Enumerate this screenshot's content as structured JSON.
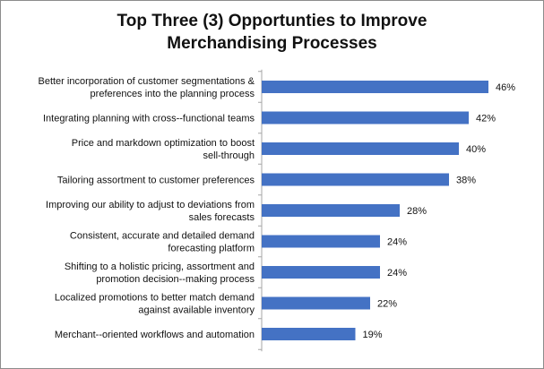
{
  "chart_data": {
    "type": "bar",
    "orientation": "horizontal",
    "title_lines": [
      "Top Three (3) Opportunties  to Improve",
      "Merchandising  Processes"
    ],
    "categories": [
      [
        "Better incorporation of customer segmentations &",
        "preferences into the planning process"
      ],
      [
        "Integrating planning with cross--functional teams"
      ],
      [
        "Price and markdown optimization to boost",
        "sell-through"
      ],
      [
        "Tailoring assortment to customer preferences"
      ],
      [
        "Improving our ability to adjust to deviations from",
        "sales forecasts"
      ],
      [
        "Consistent, accurate and detailed demand",
        "forecasting platform"
      ],
      [
        "Shifting to a holistic pricing, assortment and",
        "promotion decision--making process"
      ],
      [
        "Localized promotions to better match demand",
        "against available inventory"
      ],
      [
        "Merchant--oriented workflows and automation"
      ]
    ],
    "values": [
      46,
      42,
      40,
      38,
      28,
      24,
      24,
      22,
      19
    ],
    "value_labels": [
      "46%",
      "42%",
      "40%",
      "38%",
      "28%",
      "24%",
      "24%",
      "22%",
      "19%"
    ],
    "xlabel": "",
    "ylabel": "",
    "xlim": [
      0,
      50
    ],
    "grid": false,
    "legend": "none",
    "bar_color": "#4472c4",
    "axis_color": "#a6a6a6"
  }
}
